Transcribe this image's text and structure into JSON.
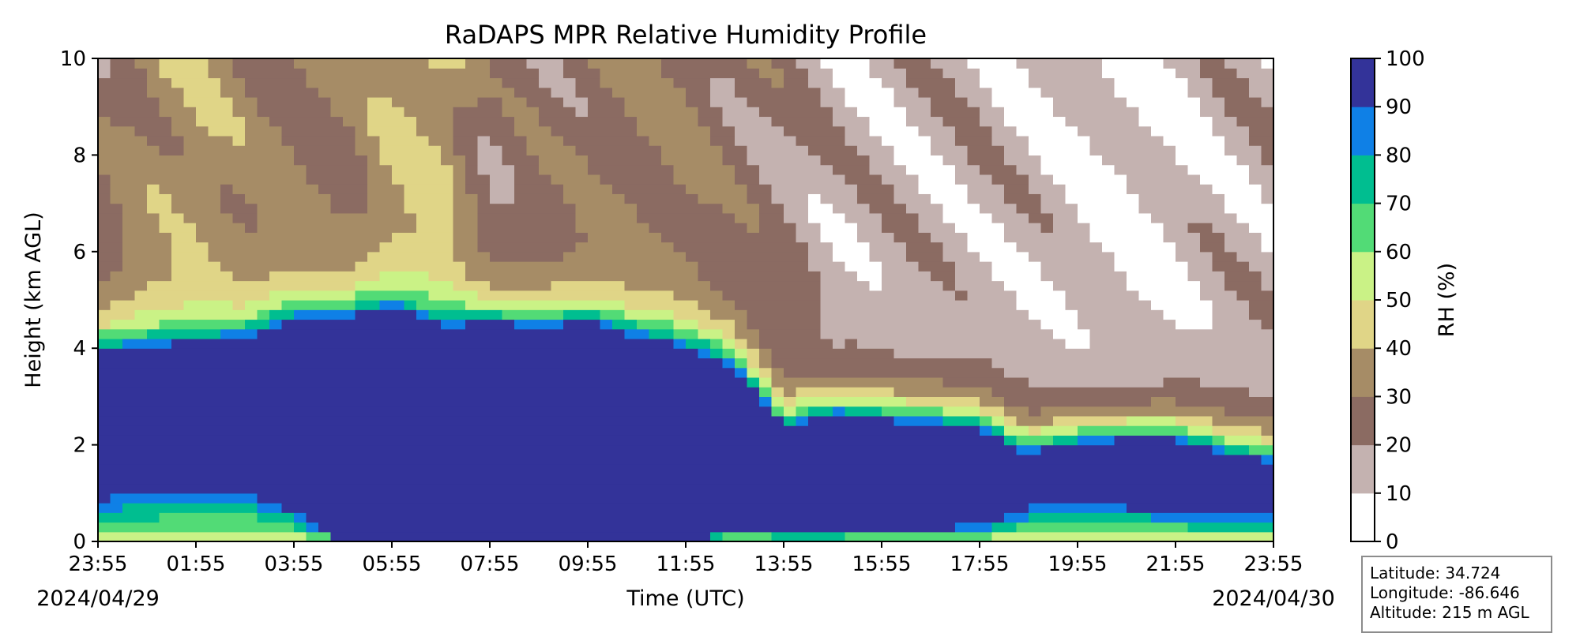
{
  "chart_data": {
    "type": "heatmap",
    "title": "RaDAPS MPR Relative Humidity Profile",
    "xlabel": "Time (UTC)",
    "ylabel": "Height (km AGL)",
    "x_ticks": [
      "23:55",
      "01:55",
      "03:55",
      "05:55",
      "07:55",
      "09:55",
      "11:55",
      "13:55",
      "15:55",
      "17:55",
      "19:55",
      "21:55",
      "23:55"
    ],
    "x_dates": {
      "start": "2024/04/29",
      "end": "2024/04/30"
    },
    "ylim": [
      0,
      10
    ],
    "y_ticks": [
      0,
      2,
      4,
      6,
      8,
      10
    ],
    "colorbar": {
      "label": "RH (%)",
      "ticks": [
        0,
        10,
        20,
        30,
        40,
        50,
        60,
        70,
        80,
        90,
        100
      ],
      "levels": [
        {
          "range": [
            0,
            10
          ],
          "color": "#ffffff"
        },
        {
          "range": [
            10,
            20
          ],
          "color": "#c4b2b0"
        },
        {
          "range": [
            20,
            30
          ],
          "color": "#8b6b62"
        },
        {
          "range": [
            30,
            40
          ],
          "color": "#a68c66"
        },
        {
          "range": [
            40,
            50
          ],
          "color": "#e0d587"
        },
        {
          "range": [
            50,
            60
          ],
          "color": "#caf286"
        },
        {
          "range": [
            60,
            70
          ],
          "color": "#52db76"
        },
        {
          "range": [
            70,
            80
          ],
          "color": "#00be90"
        },
        {
          "range": [
            80,
            90
          ],
          "color": "#0f80e6"
        },
        {
          "range": [
            90,
            100
          ],
          "color": "#333399"
        }
      ]
    },
    "profile_columns": [
      {
        "hours": 0.0,
        "moist_top_km": 3.9,
        "surface_drop_km": 1.0,
        "upper_rh": 25
      },
      {
        "hours": 1.0,
        "moist_top_km": 4.0,
        "surface_drop_km": 1.1,
        "upper_rh": 35
      },
      {
        "hours": 2.0,
        "moist_top_km": 4.1,
        "surface_drop_km": 1.2,
        "upper_rh": 38
      },
      {
        "hours": 3.0,
        "moist_top_km": 4.2,
        "surface_drop_km": 1.2,
        "upper_rh": 32
      },
      {
        "hours": 4.0,
        "moist_top_km": 4.6,
        "surface_drop_km": 0.7,
        "upper_rh": 30
      },
      {
        "hours": 5.0,
        "moist_top_km": 4.6,
        "surface_drop_km": 0.0,
        "upper_rh": 28
      },
      {
        "hours": 6.0,
        "moist_top_km": 4.8,
        "surface_drop_km": 0.0,
        "upper_rh": 38
      },
      {
        "hours": 7.0,
        "moist_top_km": 4.4,
        "surface_drop_km": 0.0,
        "upper_rh": 42
      },
      {
        "hours": 8.0,
        "moist_top_km": 4.5,
        "surface_drop_km": 0.0,
        "upper_rh": 22
      },
      {
        "hours": 9.0,
        "moist_top_km": 4.4,
        "surface_drop_km": 0.0,
        "upper_rh": 25
      },
      {
        "hours": 10.0,
        "moist_top_km": 4.5,
        "surface_drop_km": 0.0,
        "upper_rh": 28
      },
      {
        "hours": 11.0,
        "moist_top_km": 4.2,
        "surface_drop_km": 0.0,
        "upper_rh": 30
      },
      {
        "hours": 12.0,
        "moist_top_km": 4.0,
        "surface_drop_km": 0.0,
        "upper_rh": 30
      },
      {
        "hours": 13.0,
        "moist_top_km": 3.6,
        "surface_drop_km": 0.3,
        "upper_rh": 25
      },
      {
        "hours": 14.0,
        "moist_top_km": 2.3,
        "surface_drop_km": 0.2,
        "upper_rh": 22
      },
      {
        "hours": 15.0,
        "moist_top_km": 2.6,
        "surface_drop_km": 0.2,
        "upper_rh": 14
      },
      {
        "hours": 16.0,
        "moist_top_km": 2.5,
        "surface_drop_km": 0.3,
        "upper_rh": 14
      },
      {
        "hours": 17.0,
        "moist_top_km": 2.4,
        "surface_drop_km": 0.3,
        "upper_rh": 15
      },
      {
        "hours": 18.0,
        "moist_top_km": 2.3,
        "surface_drop_km": 0.4,
        "upper_rh": 15
      },
      {
        "hours": 19.0,
        "moist_top_km": 1.8,
        "surface_drop_km": 0.8,
        "upper_rh": 13
      },
      {
        "hours": 20.0,
        "moist_top_km": 2.0,
        "surface_drop_km": 0.8,
        "upper_rh": 11
      },
      {
        "hours": 21.0,
        "moist_top_km": 2.1,
        "surface_drop_km": 0.8,
        "upper_rh": 9
      },
      {
        "hours": 22.0,
        "moist_top_km": 2.1,
        "surface_drop_km": 0.7,
        "upper_rh": 11
      },
      {
        "hours": 23.0,
        "moist_top_km": 1.8,
        "surface_drop_km": 0.6,
        "upper_rh": 14
      },
      {
        "hours": 24.0,
        "moist_top_km": 1.6,
        "surface_drop_km": 0.6,
        "upper_rh": 16
      }
    ]
  },
  "info": {
    "latitude": "Latitude: 34.724",
    "longitude": "Longitude: -86.646",
    "altitude": "Altitude: 215 m AGL"
  }
}
